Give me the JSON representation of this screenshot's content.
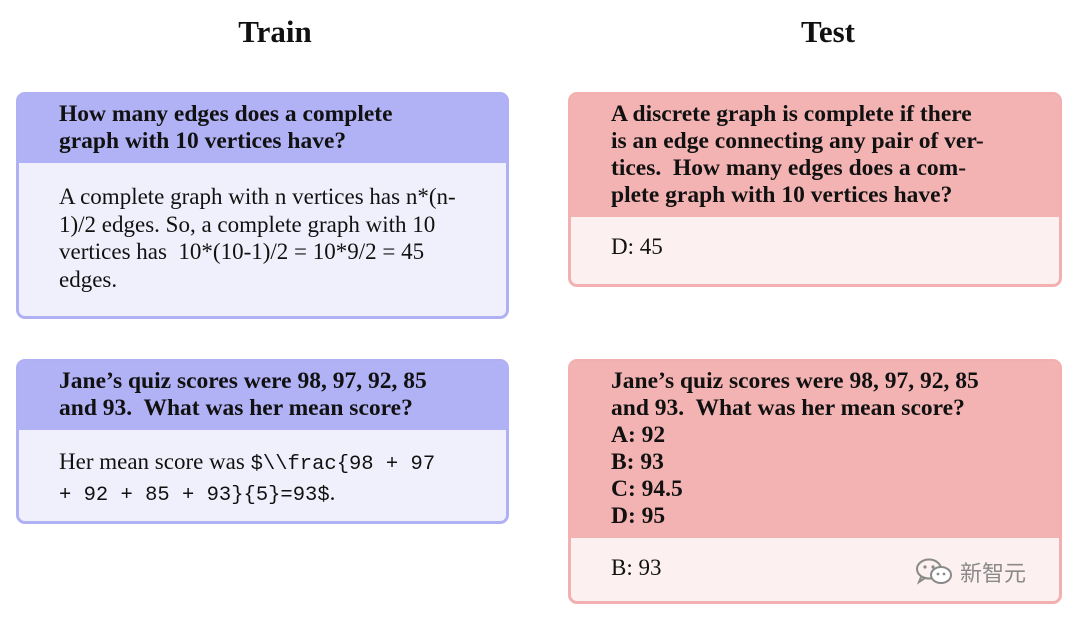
{
  "titles": {
    "train": "Train",
    "test": "Test"
  },
  "train": [
    {
      "question_lines": [
        "How many edges does a complete",
        "graph with 10 vertices have?"
      ],
      "answer_lines": [
        "A complete graph with n vertices has n*(n-",
        "1)/2 edges. So, a complete graph with 10",
        "vertices has  10*(10-1)/2 = 10*9/2 = 45",
        "edges."
      ]
    },
    {
      "question_lines": [
        "Jane’s quiz scores were 98, 97, 92, 85",
        "and 93.  What was her mean score?"
      ],
      "answer_prefix": "Her mean score was ",
      "answer_code_1": "$\\\\frac{98 + 97",
      "answer_code_2": "+ 92 + 85 + 93}{5}=93$",
      "answer_suffix": "."
    }
  ],
  "test": [
    {
      "question_lines": [
        "A discrete graph is complete if there",
        "is an edge connecting any pair of ver-",
        "tices.  How many edges does a com-",
        "plete graph with 10 vertices have?"
      ],
      "answer": "D: 45"
    },
    {
      "question_lines": [
        "Jane’s quiz scores were 98, 97, 92, 85",
        "and 93.  What was her mean score?"
      ],
      "options": [
        "A: 92",
        "B: 93",
        "C: 94.5",
        "D: 95"
      ],
      "answer": "B: 93"
    }
  ],
  "watermark": {
    "text": "新智元",
    "icon": "wechat-icon"
  }
}
